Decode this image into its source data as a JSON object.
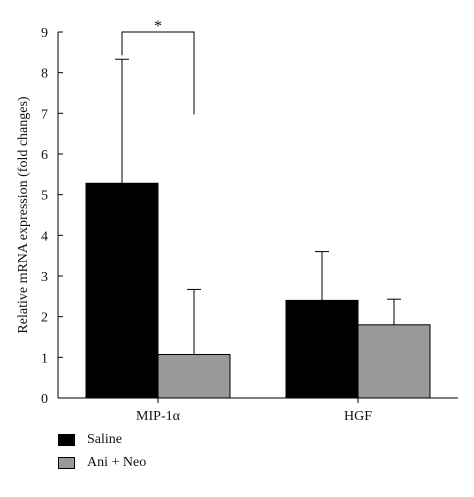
{
  "chart_data": {
    "type": "bar",
    "categories": [
      "MIP-1α",
      "HGF"
    ],
    "ylabel": "Relative mRNA expression (fold changes)",
    "ylim": [
      0,
      9
    ],
    "yticks": [
      "0",
      "1",
      "2",
      "3",
      "4",
      "5",
      "6",
      "7",
      "8",
      "9"
    ],
    "grid": false,
    "series": [
      {
        "name": "Saline",
        "values": [
          5.28,
          2.4
        ],
        "errors": [
          3.05,
          1.2
        ],
        "color": "#000000"
      },
      {
        "name": "Ani + Neo",
        "values": [
          1.07,
          1.8
        ],
        "errors": [
          1.6,
          0.63
        ],
        "color": "#999999"
      }
    ],
    "annotations": [
      {
        "text": "*",
        "between": [
          "MIP-1α:Saline",
          "MIP-1α:Ani + Neo"
        ]
      }
    ],
    "legend_position": "bottom-left"
  }
}
